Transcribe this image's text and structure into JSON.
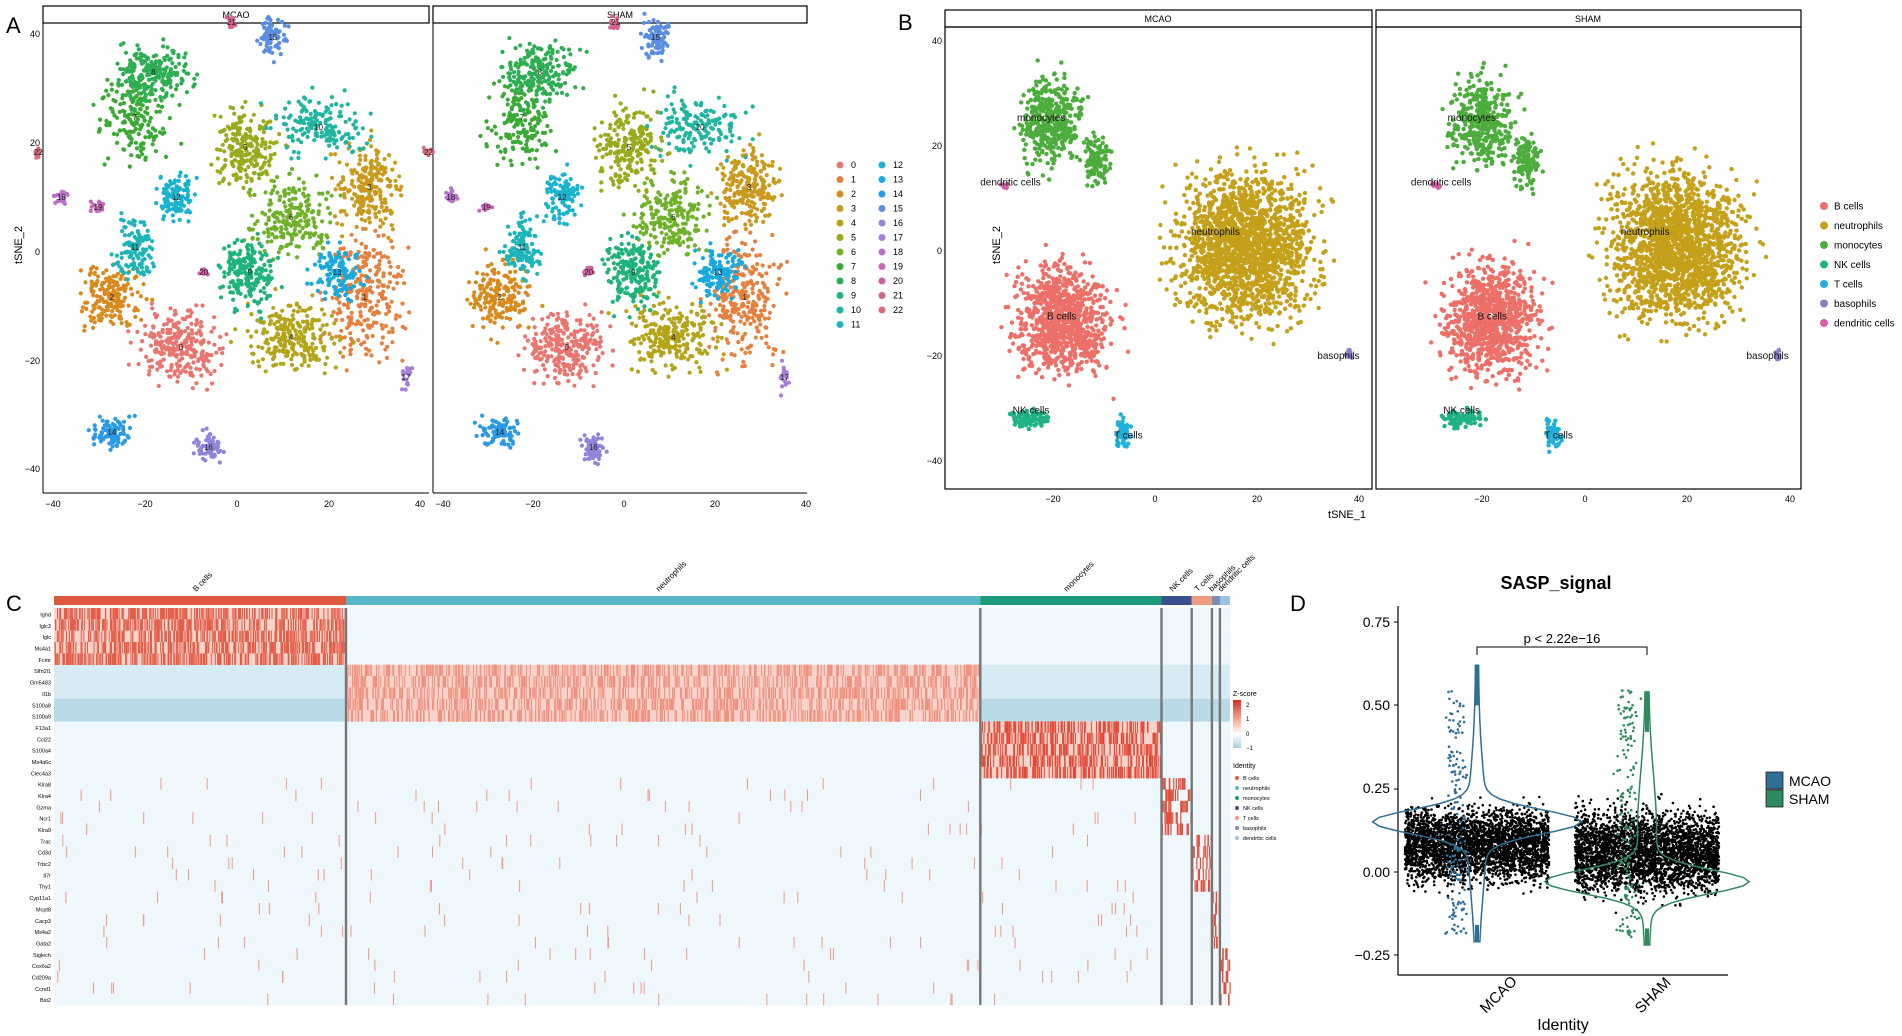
{
  "panel_letters": {
    "a": "A",
    "b": "B",
    "c": "C",
    "d": "D"
  },
  "panel_a": {
    "facets": [
      "MCAO",
      "SHAM"
    ],
    "xticks": [
      "−40",
      "−20",
      "0",
      "20",
      "40"
    ],
    "yticks": [
      "40",
      "20",
      "0",
      "−20",
      "−40"
    ],
    "ylabel": "tSNE_2",
    "legend": [
      "0",
      "1",
      "2",
      "3",
      "4",
      "5",
      "6",
      "7",
      "8",
      "9",
      "10",
      "11",
      "12",
      "13",
      "14",
      "15",
      "16",
      "17",
      "18",
      "19",
      "20",
      "21",
      "22"
    ],
    "cluster_colors": [
      "#e8766f",
      "#e5813f",
      "#d98a1e",
      "#c99a1d",
      "#b4a41a",
      "#9aaa1c",
      "#6fb22a",
      "#3aaa35",
      "#2eae53",
      "#1fb37a",
      "#20b59e",
      "#1eb5b8",
      "#1ab3cf",
      "#17a9e0",
      "#2b9ae5",
      "#5a8ee3",
      "#8f85dc",
      "#a77fd9",
      "#b873c9",
      "#c768bb",
      "#d05ea7",
      "#d6628e",
      "#d96c7a"
    ],
    "cluster_labels_mcao": [
      "0",
      "1",
      "2",
      "3",
      "4",
      "5",
      "6",
      "7",
      "8",
      "9",
      "10",
      "11",
      "12",
      "13",
      "14",
      "15",
      "16",
      "17",
      "18",
      "19",
      "20",
      "21",
      "22"
    ],
    "cluster_labels_sham": [
      "0",
      "1",
      "2",
      "3",
      "4",
      "5",
      "6",
      "7",
      "8",
      "9",
      "10",
      "11",
      "12",
      "13",
      "14",
      "15",
      "16",
      "17",
      "18",
      "19",
      "20",
      "21",
      "22"
    ]
  },
  "panel_b": {
    "facets": [
      "MCAO",
      "SHAM"
    ],
    "xticks": [
      "−20",
      "0",
      "20",
      "40"
    ],
    "yticks": [
      "40",
      "20",
      "0",
      "−20",
      "−40"
    ],
    "xlabel": "tSNE_1",
    "ylabel": "tSNE_2",
    "legend": [
      {
        "label": "B cells",
        "color": "#ec7068"
      },
      {
        "label": "neutrophils",
        "color": "#c5a01a"
      },
      {
        "label": "monocytes",
        "color": "#4cad3c"
      },
      {
        "label": "NK cells",
        "color": "#1fb286"
      },
      {
        "label": "T cells",
        "color": "#1fb1dc"
      },
      {
        "label": "basophils",
        "color": "#8b80c6"
      },
      {
        "label": "dendritic cells",
        "color": "#d45fa6"
      }
    ],
    "cell_labels": [
      "monocytes",
      "dendritic cells",
      "neutrophils",
      "B cells",
      "basophils",
      "NK cells",
      "T cells"
    ]
  },
  "panel_c": {
    "groups": [
      {
        "label": "B cells",
        "color": "#dd5a3f"
      },
      {
        "label": "neutrophils",
        "color": "#58b6c9"
      },
      {
        "label": "monocytes",
        "color": "#1c9a7c"
      },
      {
        "label": "NK cells",
        "color": "#3a4f8c"
      },
      {
        "label": "T cells",
        "color": "#eb9c81"
      },
      {
        "label": "basophils",
        "color": "#7d8cb4"
      },
      {
        "label": "dendritic cells",
        "color": "#9cc3e2"
      }
    ],
    "genes": [
      "Ighd",
      "Iglc3",
      "Iglc",
      "Ms4a1",
      "Fcmr",
      "Slfn2l1",
      "Gm5483",
      "Il1b",
      "S100a8",
      "S100a9",
      "F13a1",
      "Ccl22",
      "S100a4",
      "Ms4a6c",
      "Clec4a3",
      "Klra8",
      "Klra4",
      "Gzma",
      "Ncr1",
      "Klra9",
      "Trac",
      "Cd3d",
      "Trbc2",
      "Il7r",
      "Thy1",
      "Cyp11a1",
      "Mcpt8",
      "Cacp3",
      "Ms4a2",
      "Gata2",
      "Siglech",
      "Cox6a2",
      "Cd209a",
      "Ccnd1",
      "Bst2"
    ],
    "zscore_title": "Z-score",
    "zscore_ticks": [
      "2",
      "1",
      "0",
      "−1"
    ],
    "identity_title": "Identity"
  },
  "panel_d": {
    "title": "SASP_signal",
    "ylabel": "",
    "xlabel": "Identity",
    "yticks": [
      "0.75",
      "0.50",
      "0.25",
      "0.00",
      "−0.25"
    ],
    "categories": [
      "MCAO",
      "SHAM"
    ],
    "pvalue": "p < 2.22e−16",
    "legend": [
      {
        "label": "MCAO",
        "color": "#2f6f95"
      },
      {
        "label": "SHAM",
        "color": "#2f8a5f"
      }
    ]
  },
  "chart_data": [
    {
      "type": "scatter",
      "title": "",
      "xlabel": "",
      "ylabel": "tSNE_2",
      "xlim": [
        -42,
        42
      ],
      "ylim": [
        -46,
        42
      ],
      "facets": [
        "MCAO",
        "SHAM"
      ],
      "legend_title": "",
      "series": [
        {
          "name": "0",
          "x": -12,
          "y": -20
        },
        {
          "name": "1",
          "x": 28,
          "y": -10
        },
        {
          "name": "2",
          "x": -27,
          "y": -10
        },
        {
          "name": "3",
          "x": 29,
          "y": 12
        },
        {
          "name": "4",
          "x": 12,
          "y": -18
        },
        {
          "name": "5",
          "x": 2,
          "y": 20
        },
        {
          "name": "6",
          "x": 12,
          "y": 6
        },
        {
          "name": "7",
          "x": -22,
          "y": 26
        },
        {
          "name": "8",
          "x": -18,
          "y": 35
        },
        {
          "name": "9",
          "x": 3,
          "y": -5
        },
        {
          "name": "10",
          "x": 18,
          "y": 24
        },
        {
          "name": "11",
          "x": -22,
          "y": 0
        },
        {
          "name": "12",
          "x": -13,
          "y": 10
        },
        {
          "name": "13",
          "x": 22,
          "y": -5
        },
        {
          "name": "14",
          "x": -27,
          "y": -37
        },
        {
          "name": "15",
          "x": 8,
          "y": 42
        },
        {
          "name": "16",
          "x": -6,
          "y": -40
        },
        {
          "name": "17",
          "x": 37,
          "y": -26
        },
        {
          "name": "18",
          "x": -38,
          "y": 10
        },
        {
          "name": "19",
          "x": -30,
          "y": 8
        },
        {
          "name": "20",
          "x": -7,
          "y": -5
        },
        {
          "name": "21",
          "x": -1,
          "y": 45
        },
        {
          "name": "22",
          "x": -43,
          "y": 19
        }
      ]
    },
    {
      "type": "scatter",
      "title": "",
      "xlabel": "tSNE_1",
      "ylabel": "tSNE_2",
      "xlim": [
        -40,
        40
      ],
      "ylim": [
        -46,
        42
      ],
      "facets": [
        "MCAO",
        "SHAM"
      ],
      "series": [
        {
          "name": "B cells",
          "x": -18,
          "y": -15
        },
        {
          "name": "neutrophils",
          "x": 18,
          "y": 0
        },
        {
          "name": "monocytes",
          "x": -20,
          "y": 25
        },
        {
          "name": "NK cells",
          "x": -24,
          "y": -35
        },
        {
          "name": "T cells",
          "x": -6,
          "y": -38
        },
        {
          "name": "basophils",
          "x": 38,
          "y": -22
        },
        {
          "name": "dendritic cells",
          "x": -29,
          "y": 12
        }
      ]
    },
    {
      "type": "heatmap",
      "title": "",
      "x_groups": [
        "B cells",
        "neutrophils",
        "monocytes",
        "NK cells",
        "T cells",
        "basophils",
        "dendritic cells"
      ],
      "y": [
        "Ighd",
        "Iglc3",
        "Iglc",
        "Ms4a1",
        "Fcmr",
        "Slfn2l1",
        "Gm5483",
        "Il1b",
        "S100a8",
        "S100a9",
        "F13a1",
        "Ccl22",
        "S100a4",
        "Ms4a6c",
        "Clec4a3",
        "Klra8",
        "Klra4",
        "Gzma",
        "Ncr1",
        "Klra9",
        "Trac",
        "Cd3d",
        "Trbc2",
        "Il7r",
        "Thy1",
        "Cyp11a1",
        "Mcpt8",
        "Cacp3",
        "Ms4a2",
        "Gata2",
        "Siglech",
        "Cox6a2",
        "Cd209a",
        "Ccnd1",
        "Bst2"
      ],
      "zlim": [
        -1,
        2
      ]
    },
    {
      "type": "violin",
      "title": "SASP_signal",
      "xlabel": "Identity",
      "ylabel": "",
      "categories": [
        "MCAO",
        "SHAM"
      ],
      "ylim": [
        -0.25,
        0.75
      ],
      "series": [
        {
          "name": "MCAO",
          "median": 0.15,
          "max": 0.62,
          "min": -0.21
        },
        {
          "name": "SHAM",
          "median": -0.03,
          "max": 0.54,
          "min": -0.22
        }
      ],
      "annotation": "p < 2.22e−16"
    }
  ]
}
